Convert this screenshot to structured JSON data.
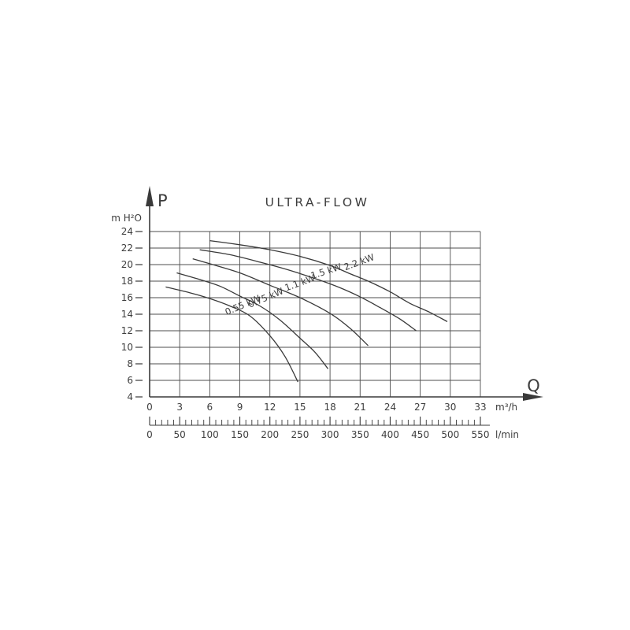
{
  "title": "ULTRA-FLOW",
  "colors": {
    "background": "#ffffff",
    "line": "#3a3a3a",
    "grid": "#4d4d4d",
    "text": "#3d3d3d"
  },
  "chart_data": {
    "type": "line",
    "title": "ULTRA-FLOW",
    "grid": true,
    "legend_position": "labels-on-curves",
    "y_axis": {
      "symbol": "P",
      "unit": "m H²O",
      "min": 4,
      "max": 24,
      "tick_step": 2,
      "tick_labels": [
        24,
        22,
        20,
        18,
        16,
        14,
        12,
        10,
        8,
        6,
        4
      ]
    },
    "x_axis": {
      "symbol": "Q",
      "unit": "m³/h",
      "min": 0,
      "max": 33,
      "tick_step": 3,
      "tick_labels": [
        0,
        3,
        6,
        9,
        12,
        15,
        18,
        21,
        24,
        27,
        30,
        33
      ]
    },
    "x_axis_secondary": {
      "unit": "l/min",
      "min": 0,
      "max": 550,
      "tick_step": 50,
      "minor_tick_step": 10,
      "tick_labels": [
        0,
        50,
        100,
        150,
        200,
        250,
        300,
        350,
        400,
        450,
        500,
        550
      ]
    },
    "series": [
      {
        "name": "0.55 kW",
        "points": [
          [
            1.6,
            17.3
          ],
          [
            4,
            16.6
          ],
          [
            6,
            15.9
          ],
          [
            8,
            15.0
          ],
          [
            10,
            13.8
          ],
          [
            12,
            11.4
          ],
          [
            13.5,
            8.9
          ],
          [
            14.8,
            5.8
          ]
        ],
        "label": {
          "q": 9.4,
          "p": 14.75,
          "angle": -23
        }
      },
      {
        "name": "0.75 kW",
        "points": [
          [
            2.7,
            19.0
          ],
          [
            5,
            18.2
          ],
          [
            7,
            17.4
          ],
          [
            9,
            16.2
          ],
          [
            11,
            15.0
          ],
          [
            13,
            13.3
          ],
          [
            15,
            11.1
          ],
          [
            16.5,
            9.4
          ],
          [
            17.8,
            7.4
          ]
        ],
        "label": {
          "q": 11.7,
          "p": 15.65,
          "angle": -23
        }
      },
      {
        "name": "1.1 kW",
        "points": [
          [
            4.3,
            20.7
          ],
          [
            6,
            20.1
          ],
          [
            9,
            19.0
          ],
          [
            12,
            17.5
          ],
          [
            15,
            16.0
          ],
          [
            18,
            14.1
          ],
          [
            20,
            12.3
          ],
          [
            21.8,
            10.2
          ]
        ],
        "label": {
          "q": 15.1,
          "p": 17.45,
          "angle": -20
        }
      },
      {
        "name": "1.5 kW",
        "points": [
          [
            5,
            21.8
          ],
          [
            8,
            21.2
          ],
          [
            11,
            20.3
          ],
          [
            14,
            19.3
          ],
          [
            17,
            18.1
          ],
          [
            19,
            17.2
          ],
          [
            21,
            16.1
          ],
          [
            23,
            14.8
          ],
          [
            25,
            13.4
          ],
          [
            26.6,
            12.0
          ]
        ],
        "label": {
          "q": 17.7,
          "p": 18.85,
          "angle": -18
        }
      },
      {
        "name": "2.2 kW",
        "points": [
          [
            6,
            22.9
          ],
          [
            9,
            22.4
          ],
          [
            12,
            21.8
          ],
          [
            15,
            21.0
          ],
          [
            18,
            19.9
          ],
          [
            20,
            18.9
          ],
          [
            22,
            17.9
          ],
          [
            24,
            16.7
          ],
          [
            26,
            15.3
          ],
          [
            28,
            14.2
          ],
          [
            29.7,
            13.1
          ]
        ],
        "label": {
          "q": 21.0,
          "p": 19.95,
          "angle": -20
        }
      }
    ]
  }
}
